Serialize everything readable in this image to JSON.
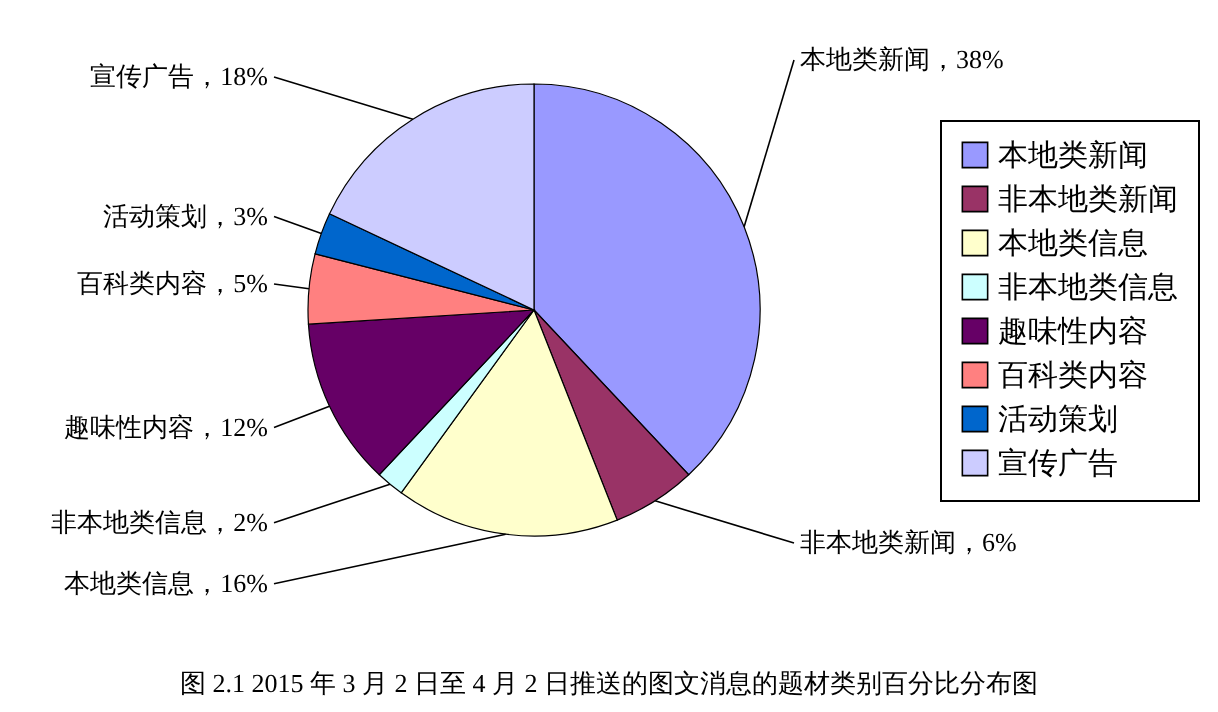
{
  "chart_data": {
    "type": "pie",
    "categories": [
      "本地类新闻",
      "非本地类新闻",
      "本地类信息",
      "非本地类信息",
      "趣味性内容",
      "百科类内容",
      "活动策划",
      "宣传广告"
    ],
    "values": [
      38,
      6,
      16,
      2,
      12,
      5,
      3,
      18
    ],
    "colors": [
      "#9999ff",
      "#993366",
      "#ffffcc",
      "#ccffff",
      "#660066",
      "#ff8080",
      "#0066cc",
      "#ccccff"
    ],
    "value_labels": [
      "本地类新闻，38%",
      "非本地类新闻，6%",
      "本地类信息，16%",
      "非本地类信息，2%",
      "趣味性内容，12%",
      "百科类内容，5%",
      "活动策划，3%",
      "宣传广告，18%"
    ],
    "legend": "right",
    "annotations": [
      "图 2.1 2015 年 3 月 2 日至 4 月 2 日推送的图文消息的题材类别百分比分布图"
    ]
  }
}
